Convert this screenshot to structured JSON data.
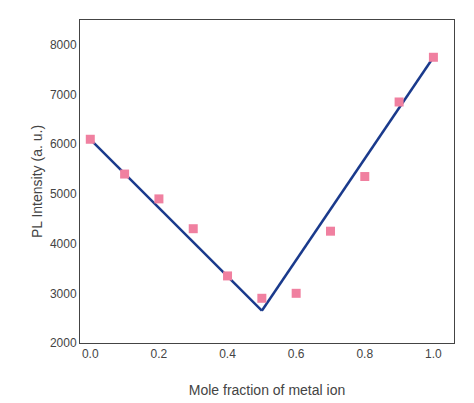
{
  "chart_data": {
    "type": "scatter",
    "xlabel": "Mole fraction of metal ion",
    "ylabel": "PL Intensity (a. u.)",
    "series": [
      {
        "type": "line",
        "x": [
          0.0,
          0.5
        ],
        "values": [
          6100,
          2650
        ],
        "color": "#1a3a8c",
        "line_style": "solid"
      },
      {
        "type": "line",
        "x": [
          0.5,
          1.0
        ],
        "values": [
          2650,
          7750
        ],
        "color": "#1a3a8c",
        "line_style": "solid"
      },
      {
        "type": "scatter",
        "x": [
          0.0,
          0.1,
          0.2,
          0.3,
          0.4,
          0.5,
          0.6,
          0.7,
          0.8,
          0.9,
          1.0
        ],
        "values": [
          6100,
          5400,
          4900,
          4300,
          3350,
          2900,
          3000,
          4250,
          5350,
          6850,
          7750
        ],
        "color": "#f080a0",
        "marker": "square"
      }
    ],
    "xlim": [
      -0.03,
      1.06
    ],
    "ylim": [
      2000,
      8500
    ],
    "xticks": [
      {
        "value": 0,
        "label": "0.0"
      },
      0.2,
      0.4,
      0.6,
      0.8,
      {
        "value": 1,
        "label": "1.0"
      }
    ],
    "yticks": [
      2000,
      3000,
      4000,
      5000,
      6000,
      7000,
      8000
    ],
    "grid": false,
    "legend": false
  }
}
